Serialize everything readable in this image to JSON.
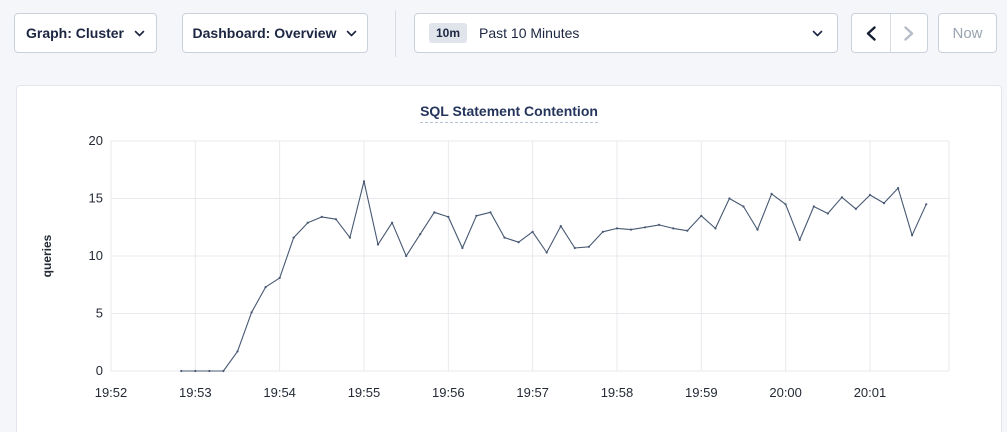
{
  "toolbar": {
    "graph_label": "Graph: Cluster",
    "dashboard_label": "Dashboard: Overview",
    "time_range_badge": "10m",
    "time_range_label": "Past 10 Minutes",
    "now_label": "Now"
  },
  "icons": {
    "graph_dropdown": "chevron-down",
    "dashboard_dropdown": "chevron-down",
    "time_range_dropdown": "chevron-down",
    "prev": "chevron-left",
    "next": "chevron-right"
  },
  "colors": {
    "page_bg": "#f4f6fa",
    "card_bg": "#ffffff",
    "card_border": "#e2e6ec",
    "control_border": "#c9d1dc",
    "text_dark": "#1c2642",
    "text_disabled": "#9aa3b2",
    "badge_bg": "#e0e5ec",
    "title": "#24345b",
    "grid": "#e8e9ec",
    "axis_text": "#242a35",
    "line": "#475872"
  },
  "chart_data": {
    "type": "line",
    "title": "SQL Statement Contention",
    "xlabel": "",
    "ylabel": "queries",
    "ylim": [
      0,
      20
    ],
    "yticks": [
      0,
      5,
      10,
      15,
      20
    ],
    "xticks": [
      "19:52",
      "19:53",
      "19:54",
      "19:55",
      "19:56",
      "19:57",
      "19:58",
      "19:59",
      "20:00",
      "20:01"
    ],
    "grid": true,
    "legend": "none",
    "x": [
      "19:52:50",
      "19:53:00",
      "19:53:10",
      "19:53:20",
      "19:53:30",
      "19:53:40",
      "19:53:50",
      "19:54:00",
      "19:54:10",
      "19:54:20",
      "19:54:30",
      "19:54:40",
      "19:54:50",
      "19:55:00",
      "19:55:10",
      "19:55:20",
      "19:55:30",
      "19:55:40",
      "19:55:50",
      "19:56:00",
      "19:56:10",
      "19:56:20",
      "19:56:30",
      "19:56:40",
      "19:56:50",
      "19:57:00",
      "19:57:10",
      "19:57:20",
      "19:57:30",
      "19:57:40",
      "19:57:50",
      "19:58:00",
      "19:58:10",
      "19:58:20",
      "19:58:30",
      "19:58:40",
      "19:58:50",
      "19:59:00",
      "19:59:10",
      "19:59:20",
      "19:59:30",
      "19:59:40",
      "19:59:50",
      "20:00:00",
      "20:00:10",
      "20:00:20",
      "20:00:30",
      "20:00:40",
      "20:00:50",
      "20:01:00",
      "20:01:10",
      "20:01:20",
      "20:01:30",
      "20:01:40"
    ],
    "series": [
      {
        "name": "queries",
        "values": [
          0,
          0,
          0,
          0,
          1.7,
          5.1,
          7.3,
          8.1,
          11.6,
          12.9,
          13.4,
          13.2,
          11.6,
          16.5,
          11.0,
          12.9,
          10.0,
          11.9,
          13.8,
          13.4,
          10.7,
          13.5,
          13.8,
          11.6,
          11.2,
          12.1,
          10.3,
          12.6,
          10.7,
          10.8,
          12.1,
          12.4,
          12.3,
          12.5,
          12.7,
          12.4,
          12.2,
          13.5,
          12.4,
          15.0,
          14.3,
          12.3,
          15.4,
          14.5,
          11.4,
          14.3,
          13.7,
          15.1,
          14.1,
          15.3,
          14.6,
          15.9,
          11.8,
          14.5
        ]
      }
    ]
  }
}
